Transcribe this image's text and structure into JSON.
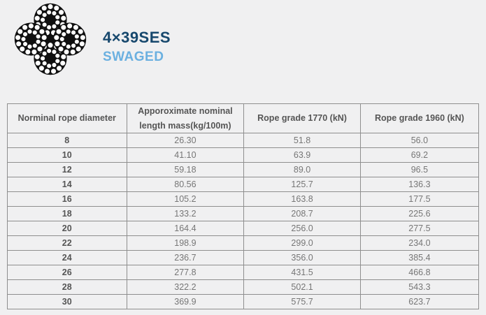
{
  "brand": {
    "title": "4×39SES",
    "subtitle": "SWAGED"
  },
  "colors": {
    "title_blue": "#17486d",
    "subtitle_blue": "#6bb0e0",
    "page_background": "#f0f0f1",
    "grid_line": "#8e8e8e",
    "outer_border": "#3f3f3f",
    "header_text": "#555555",
    "cell_text": "#767676"
  },
  "icons": {
    "rope_image": "wire-rope-cross-section-4-strand"
  },
  "table": {
    "headers": [
      "Norminal rope diameter",
      "Apporoximate nominal length mass(kg/100m)",
      "Rope grade 1770 (kN)",
      "Rope grade 1960 (kN)"
    ],
    "rows": [
      [
        "8",
        "26.30",
        "51.8",
        "56.0"
      ],
      [
        "10",
        "41.10",
        "63.9",
        "69.2"
      ],
      [
        "12",
        "59.18",
        "89.0",
        "96.5"
      ],
      [
        "14",
        "80.56",
        "125.7",
        "136.3"
      ],
      [
        "16",
        "105.2",
        "163.8",
        "177.5"
      ],
      [
        "18",
        "133.2",
        "208.7",
        "225.6"
      ],
      [
        "20",
        "164.4",
        "256.0",
        "277.5"
      ],
      [
        "22",
        "198.9",
        "299.0",
        "234.0"
      ],
      [
        "24",
        "236.7",
        "356.0",
        "385.4"
      ],
      [
        "26",
        "277.8",
        "431.5",
        "466.8"
      ],
      [
        "28",
        "322.2",
        "502.1",
        "543.3"
      ],
      [
        "30",
        "369.9",
        "575.7",
        "623.7"
      ]
    ]
  },
  "chart_data": {
    "type": "table",
    "title": "4×39SES SWAGED",
    "columns": [
      "Norminal rope diameter",
      "Apporoximate nominal length mass(kg/100m)",
      "Rope grade 1770 (kN)",
      "Rope grade 1960 (kN)"
    ],
    "diameters": [
      8,
      10,
      12,
      14,
      16,
      18,
      20,
      22,
      24,
      26,
      28,
      30
    ],
    "mass_kg_per_100m": [
      26.3,
      41.1,
      59.18,
      80.56,
      105.2,
      133.2,
      164.4,
      198.9,
      236.7,
      277.8,
      322.2,
      369.9
    ],
    "grade_1770_kN": [
      51.8,
      63.9,
      89.0,
      125.7,
      163.8,
      208.7,
      256.0,
      299.0,
      356.0,
      431.5,
      502.1,
      575.7
    ],
    "grade_1960_kN": [
      56.0,
      69.2,
      96.5,
      136.3,
      177.5,
      225.6,
      277.5,
      234.0,
      385.4,
      466.8,
      543.3,
      623.7
    ]
  }
}
